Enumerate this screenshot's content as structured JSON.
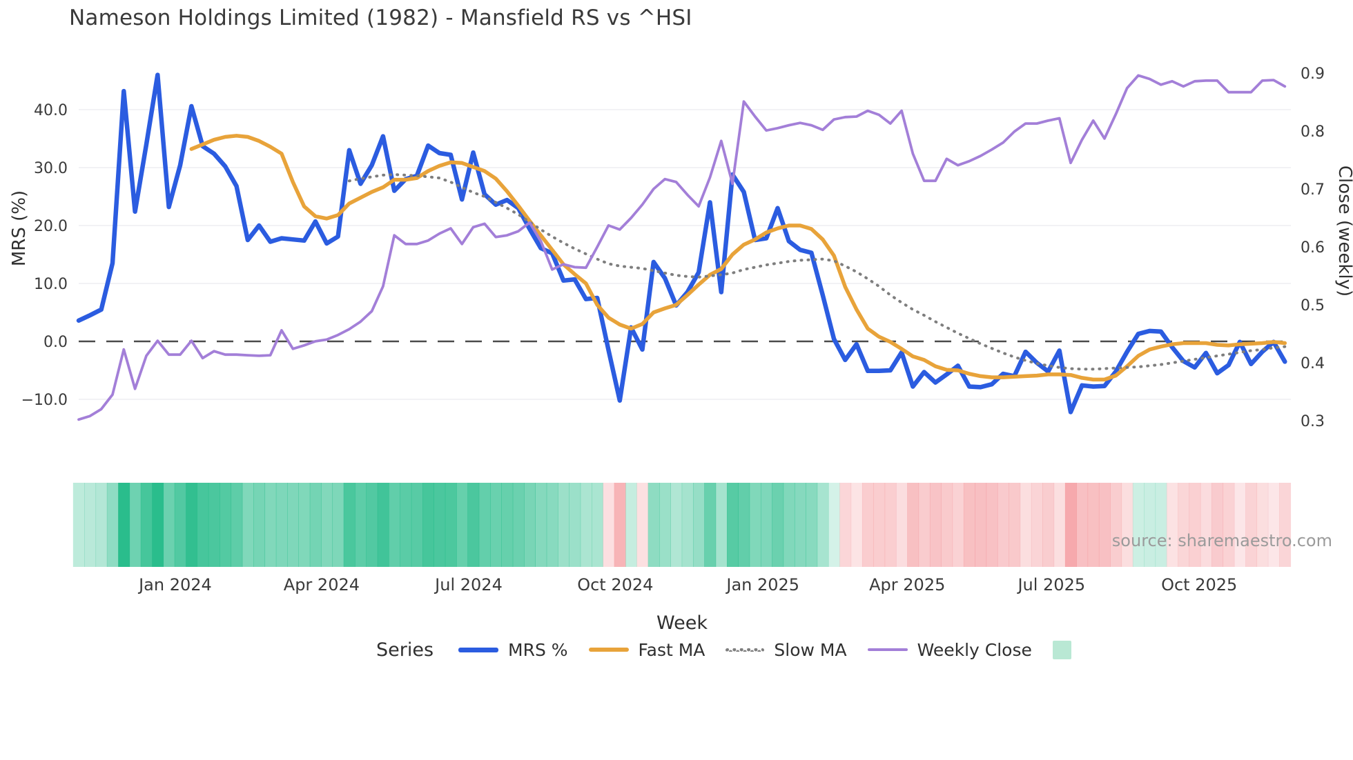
{
  "header": {
    "title": "Nameson Holdings Limited (1982) - Mansfield RS vs ^HSI"
  },
  "source_text": "source: sharemaestro.com",
  "legend": {
    "series_word": "Series",
    "items": [
      {
        "label": "MRS %",
        "kind": "line",
        "color": "#2b5ce0"
      },
      {
        "label": "Fast MA",
        "kind": "line",
        "color": "#e8a33a"
      },
      {
        "label": "Slow MA",
        "kind": "dotted",
        "color": "#7e7e7e"
      },
      {
        "label": "Weekly Close",
        "kind": "line",
        "color": "#a37fd8"
      },
      {
        "label": "",
        "kind": "swatch",
        "color": "#b9e8d4"
      }
    ]
  },
  "chart_data": {
    "type": "line",
    "title": "Nameson Holdings Limited (1982) - Mansfield RS vs ^HSI",
    "xlabel": "Week",
    "ylabel_left": "MRS (%)",
    "ylabel_right": "Close (weekly)",
    "grid": "horizontal-only",
    "zero_line": {
      "value": 0,
      "style": "dashed",
      "color": "#4a4a4a"
    },
    "ylim_left": [
      -16,
      48
    ],
    "ylim_right": [
      0.28,
      0.92
    ],
    "left_ticks": [
      {
        "v": 40,
        "label": "40.0"
      },
      {
        "v": 30,
        "label": "30.0"
      },
      {
        "v": 20,
        "label": "20.0"
      },
      {
        "v": 10,
        "label": "10.0"
      },
      {
        "v": 0,
        "label": "0.0"
      },
      {
        "v": -10,
        "label": "−10.0"
      }
    ],
    "right_ticks": [
      {
        "v": 0.9,
        "label": "0.9"
      },
      {
        "v": 0.8,
        "label": "0.8"
      },
      {
        "v": 0.7,
        "label": "0.7"
      },
      {
        "v": 0.6,
        "label": "0.6"
      },
      {
        "v": 0.5,
        "label": "0.5"
      },
      {
        "v": 0.4,
        "label": "0.4"
      },
      {
        "v": 0.3,
        "label": "0.3"
      }
    ],
    "x_ticks": [
      {
        "label": "Jan 2024",
        "week": 8.57
      },
      {
        "label": "Apr 2024",
        "week": 21.55
      },
      {
        "label": "Jul 2024",
        "week": 34.6
      },
      {
        "label": "Oct 2024",
        "week": 47.6
      },
      {
        "label": "Jan 2025",
        "week": 60.7
      },
      {
        "label": "Apr 2025",
        "week": 73.5
      },
      {
        "label": "Jul 2025",
        "week": 86.3
      },
      {
        "label": "Oct 2025",
        "week": 99.4
      }
    ],
    "weeks_count": 108,
    "series": [
      {
        "name": "MRS %",
        "axis": "left",
        "color": "#2b5ce0",
        "width": 6.5,
        "dash": null,
        "values": [
          3.6,
          4.5,
          5.5,
          13.5,
          43.2,
          22.4,
          34.0,
          46.0,
          23.2,
          30.4,
          40.6,
          33.7,
          32.4,
          30.2,
          26.8,
          17.5,
          20.0,
          17.2,
          17.8,
          17.6,
          17.4,
          20.7,
          16.9,
          18.1,
          33.0,
          27.2,
          30.4,
          35.4,
          26.0,
          28.0,
          28.6,
          33.8,
          32.5,
          32.2,
          24.5,
          32.6,
          25.4,
          23.6,
          24.4,
          23.0,
          19.4,
          16.1,
          15.2,
          10.5,
          10.7,
          7.3,
          7.5,
          -1.5,
          -10.2,
          2.4,
          -1.4,
          13.7,
          10.9,
          6.2,
          8.5,
          11.9,
          24.0,
          8.5,
          28.8,
          25.8,
          17.5,
          17.8,
          23.0,
          17.3,
          15.8,
          15.3,
          8.0,
          0.4,
          -3.2,
          -0.5,
          -5.1,
          -5.1,
          -5.0,
          -1.9,
          -7.8,
          -5.3,
          -7.1,
          -5.7,
          -4.2,
          -7.8,
          -7.9,
          -7.4,
          -5.6,
          -6.0,
          -1.8,
          -3.7,
          -5.2,
          -1.6,
          -12.2,
          -7.6,
          -7.8,
          -7.7,
          -5.2,
          -1.8,
          1.3,
          1.8,
          1.7,
          -1.0,
          -3.4,
          -4.5,
          -2.0,
          -5.5,
          -4.1,
          -0.1,
          -3.9,
          -1.8,
          -0.1,
          -3.5
        ]
      },
      {
        "name": "Fast MA",
        "axis": "left",
        "color": "#e8a33a",
        "width": 5.5,
        "dash": null,
        "values": [
          null,
          null,
          null,
          null,
          null,
          null,
          null,
          null,
          null,
          null,
          33.2,
          34.0,
          34.8,
          35.3,
          35.5,
          35.3,
          34.6,
          33.6,
          32.4,
          27.5,
          23.3,
          21.6,
          21.2,
          21.8,
          23.8,
          24.8,
          25.8,
          26.6,
          27.9,
          27.9,
          28.2,
          29.4,
          30.3,
          30.9,
          30.8,
          30.1,
          29.4,
          28.1,
          25.9,
          23.4,
          20.8,
          18.3,
          15.8,
          13.3,
          11.6,
          10.0,
          6.3,
          4.1,
          2.9,
          2.2,
          3.0,
          5.0,
          5.7,
          6.3,
          8.0,
          9.8,
          11.5,
          12.5,
          15.0,
          16.7,
          17.6,
          18.8,
          19.5,
          20.0,
          20.0,
          19.4,
          17.6,
          14.8,
          9.4,
          5.5,
          2.2,
          0.8,
          -0.1,
          -1.3,
          -2.6,
          -3.2,
          -4.3,
          -4.9,
          -5.0,
          -5.6,
          -6.0,
          -6.2,
          -6.2,
          -6.1,
          -6.0,
          -5.9,
          -5.7,
          -5.7,
          -5.8,
          -6.3,
          -6.6,
          -6.6,
          -5.9,
          -4.3,
          -2.5,
          -1.4,
          -0.9,
          -0.5,
          -0.3,
          -0.3,
          -0.3,
          -0.6,
          -0.7,
          -0.5,
          -0.4,
          -0.3,
          -0.1,
          -0.3
        ]
      },
      {
        "name": "Slow MA",
        "axis": "left",
        "color": "#7e7e7e",
        "width": 4,
        "dash": "1 9",
        "values": [
          null,
          null,
          null,
          null,
          null,
          null,
          null,
          null,
          null,
          null,
          null,
          null,
          null,
          null,
          null,
          null,
          null,
          null,
          null,
          null,
          null,
          null,
          null,
          null,
          27.7,
          28.1,
          28.4,
          28.7,
          28.8,
          28.7,
          28.6,
          28.4,
          28.2,
          27.5,
          26.6,
          25.7,
          25.0,
          24.0,
          23.0,
          21.9,
          20.6,
          19.3,
          18.1,
          17.0,
          16.0,
          15.1,
          14.2,
          13.4,
          13.0,
          12.8,
          12.6,
          12.2,
          11.8,
          11.4,
          11.2,
          11.1,
          11.3,
          11.5,
          11.8,
          12.4,
          12.8,
          13.2,
          13.5,
          13.8,
          14.0,
          14.1,
          14.2,
          13.9,
          13.0,
          12.0,
          10.8,
          9.5,
          8.0,
          6.7,
          5.5,
          4.5,
          3.4,
          2.4,
          1.4,
          0.5,
          -0.4,
          -1.2,
          -2.0,
          -2.7,
          -3.3,
          -3.8,
          -4.2,
          -4.5,
          -4.7,
          -4.8,
          -4.8,
          -4.7,
          -4.6,
          -4.5,
          -4.4,
          -4.2,
          -4.0,
          -3.7,
          -3.4,
          -3.1,
          -2.8,
          -2.5,
          -2.2,
          -1.9,
          -1.6,
          -1.4,
          -1.1,
          -0.9
        ]
      },
      {
        "name": "Weekly Close",
        "axis": "right",
        "color": "#a37fd8",
        "width": 3.8,
        "dash": null,
        "values": [
          0.302,
          0.308,
          0.32,
          0.345,
          0.423,
          0.355,
          0.412,
          0.438,
          0.414,
          0.414,
          0.438,
          0.408,
          0.42,
          0.414,
          0.414,
          0.413,
          0.412,
          0.413,
          0.456,
          0.424,
          0.43,
          0.437,
          0.44,
          0.448,
          0.458,
          0.471,
          0.489,
          0.532,
          0.62,
          0.605,
          0.605,
          0.611,
          0.623,
          0.632,
          0.605,
          0.634,
          0.64,
          0.617,
          0.62,
          0.627,
          0.642,
          0.61,
          0.561,
          0.57,
          0.565,
          0.564,
          0.6,
          0.637,
          0.63,
          0.65,
          0.673,
          0.7,
          0.717,
          0.712,
          0.69,
          0.67,
          0.72,
          0.783,
          0.709,
          0.851,
          0.825,
          0.801,
          0.805,
          0.81,
          0.814,
          0.81,
          0.802,
          0.82,
          0.824,
          0.825,
          0.835,
          0.828,
          0.813,
          0.835,
          0.761,
          0.714,
          0.714,
          0.752,
          0.741,
          0.748,
          0.757,
          0.768,
          0.78,
          0.799,
          0.813,
          0.813,
          0.818,
          0.822,
          0.745,
          0.785,
          0.818,
          0.787,
          0.829,
          0.874,
          0.896,
          0.89,
          0.88,
          0.886,
          0.877,
          0.886,
          0.887,
          0.887,
          0.867,
          0.867,
          0.867,
          0.887,
          0.888,
          0.877
        ]
      }
    ],
    "heatmap": {
      "description": "weekly strip colored by MRS % sign/magnitude",
      "positive_color": "#2abd8c",
      "negative_color": "#f39196",
      "source_series": "MRS %"
    },
    "layout_hints": {
      "legend_position": "bottom",
      "gridlines": true
    }
  }
}
